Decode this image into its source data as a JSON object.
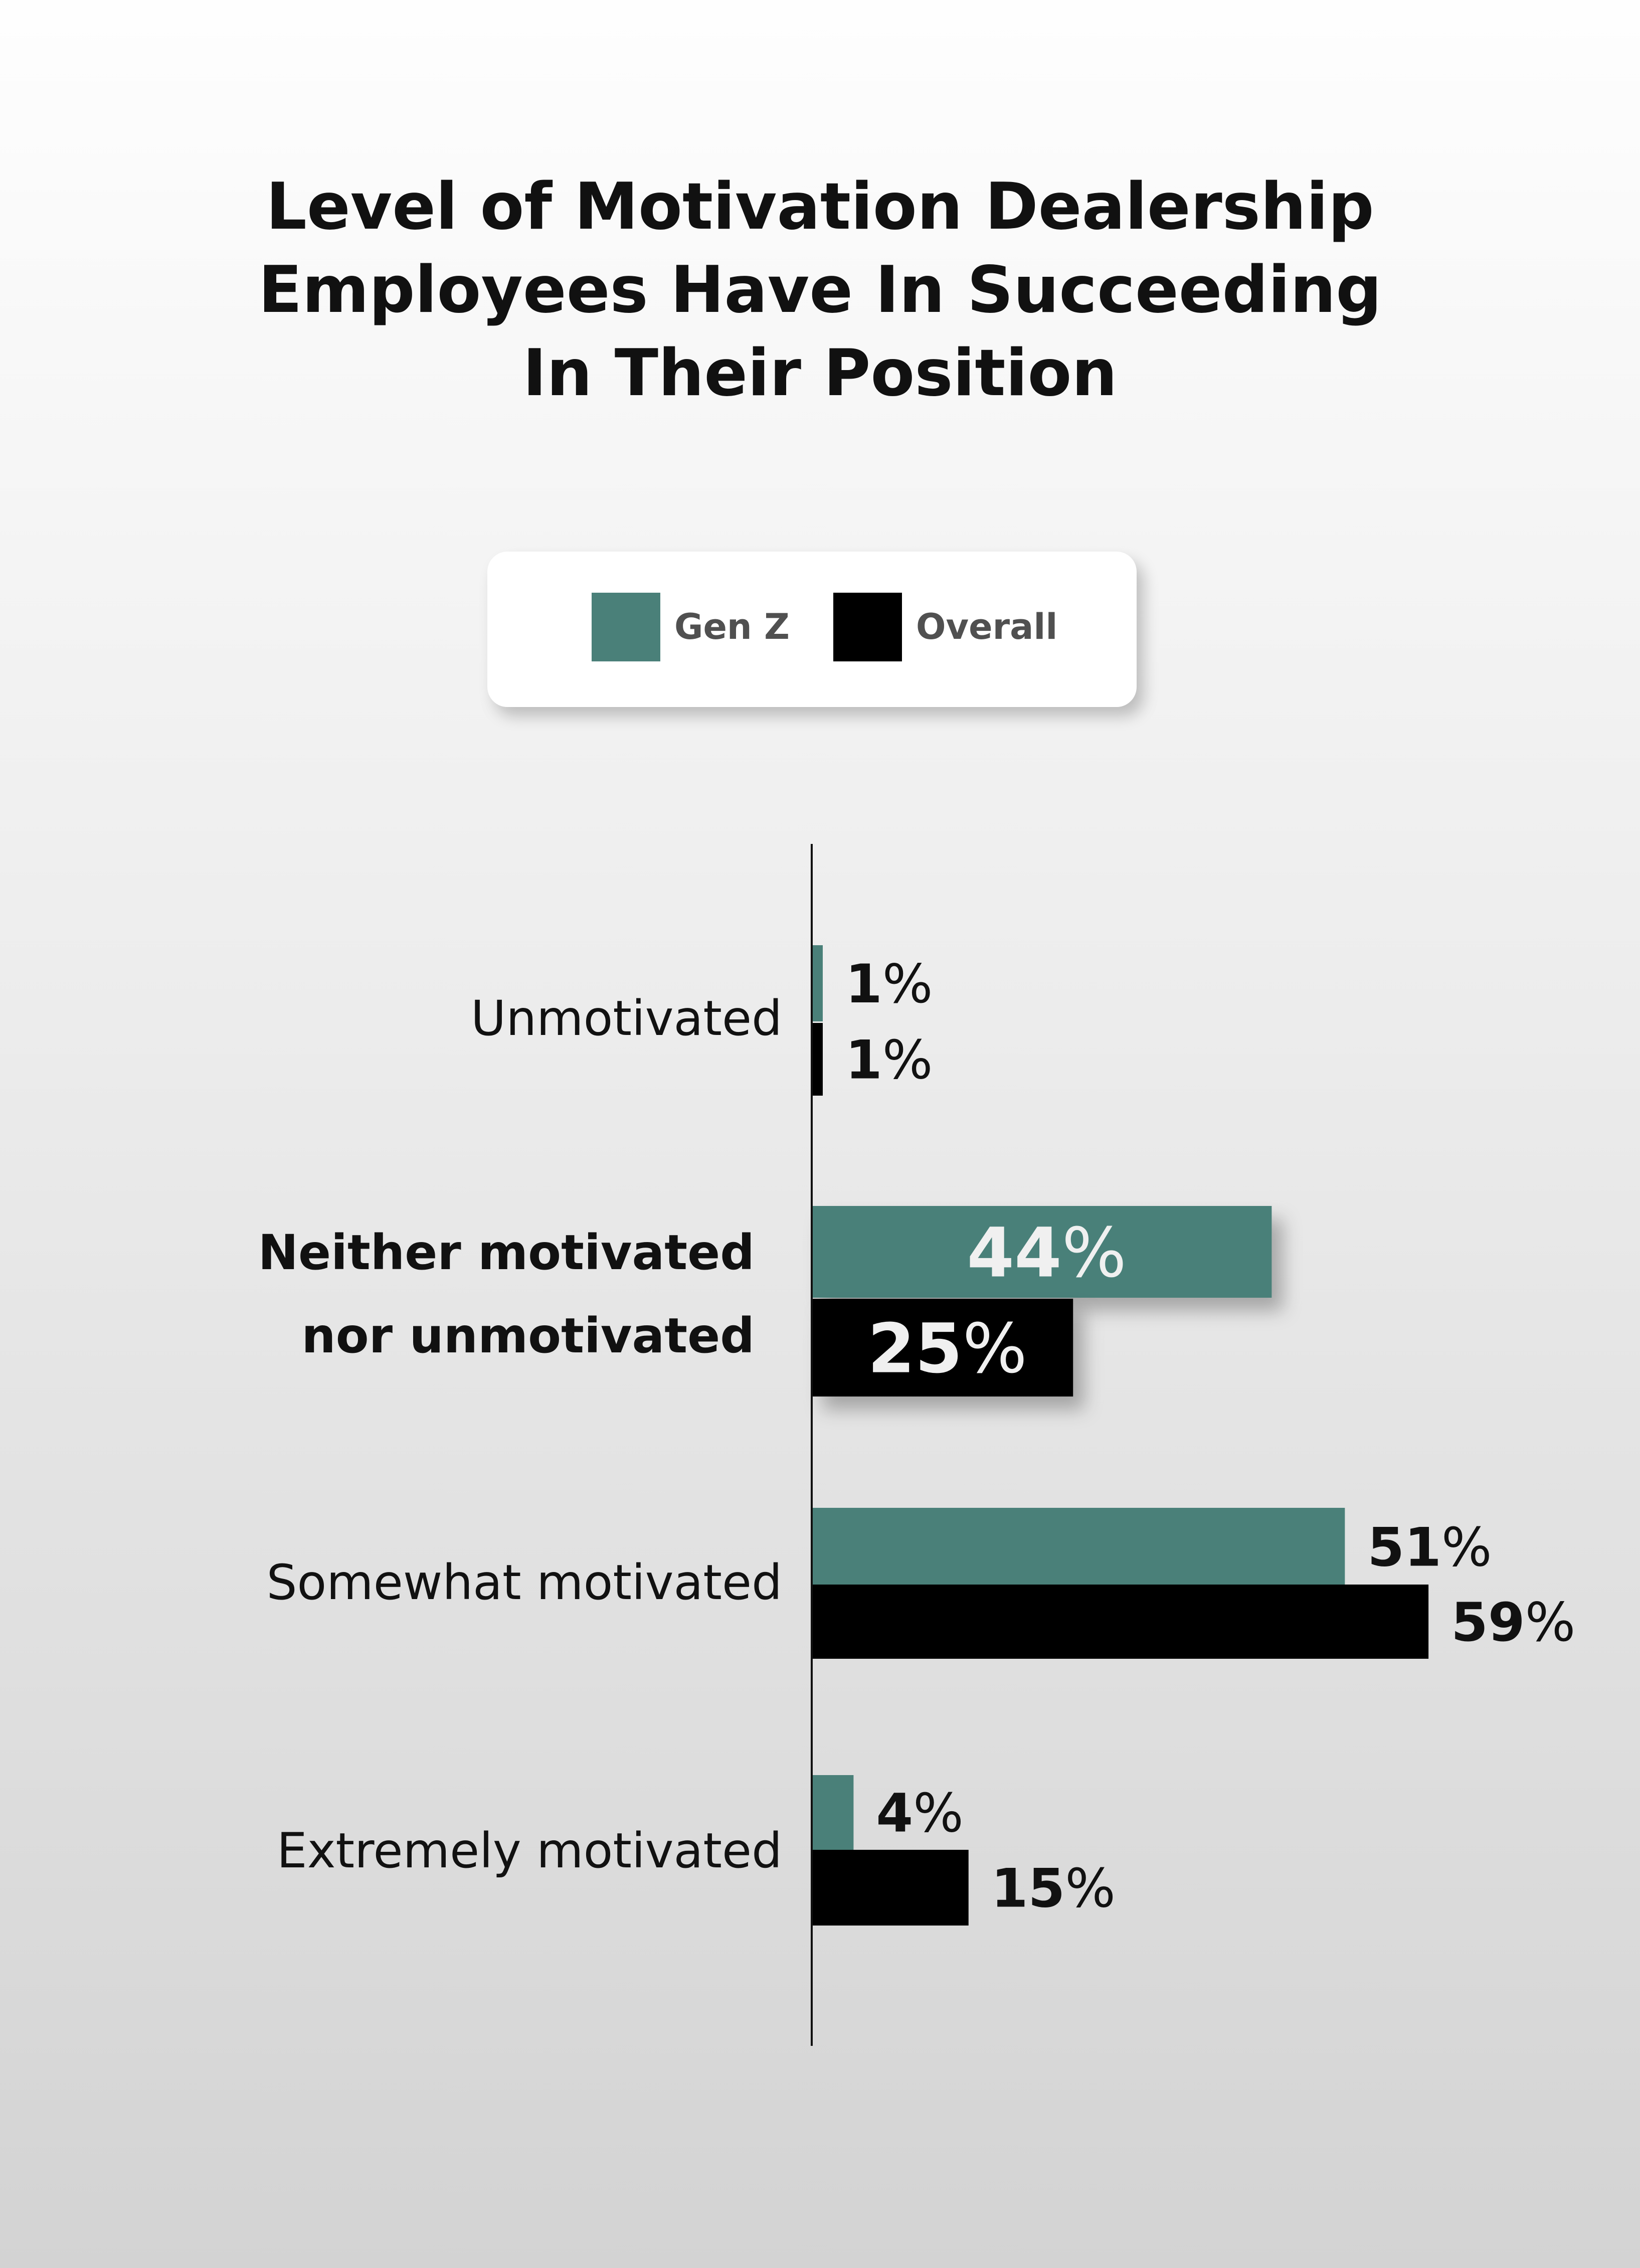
{
  "title_lines": [
    "Level of Motivation Dealership",
    "Employees Have In Succeeding",
    "In Their Position"
  ],
  "legend": [
    {
      "name": "Gen Z",
      "color": "#4a8079"
    },
    {
      "name": "Overall",
      "color": "#000000"
    }
  ],
  "chart_data": {
    "type": "bar",
    "orientation": "horizontal",
    "categories": [
      "Unmotivated",
      "Neither motivated nor unmotivated",
      "Somewhat motivated",
      "Extremely motivated"
    ],
    "category_label_lines": [
      [
        "Unmotivated"
      ],
      [
        "Neither motivated",
        "nor unmotivated"
      ],
      [
        "Somewhat motivated"
      ],
      [
        "Extremely motivated"
      ]
    ],
    "series": [
      {
        "name": "Gen Z",
        "color": "#4a8079",
        "values": [
          1,
          44,
          51,
          4
        ]
      },
      {
        "name": "Overall",
        "color": "#000000",
        "values": [
          1,
          25,
          59,
          15
        ]
      }
    ],
    "value_suffix": "%",
    "xlim": [
      0,
      60
    ],
    "grid": false,
    "legend_position": "top-center"
  }
}
